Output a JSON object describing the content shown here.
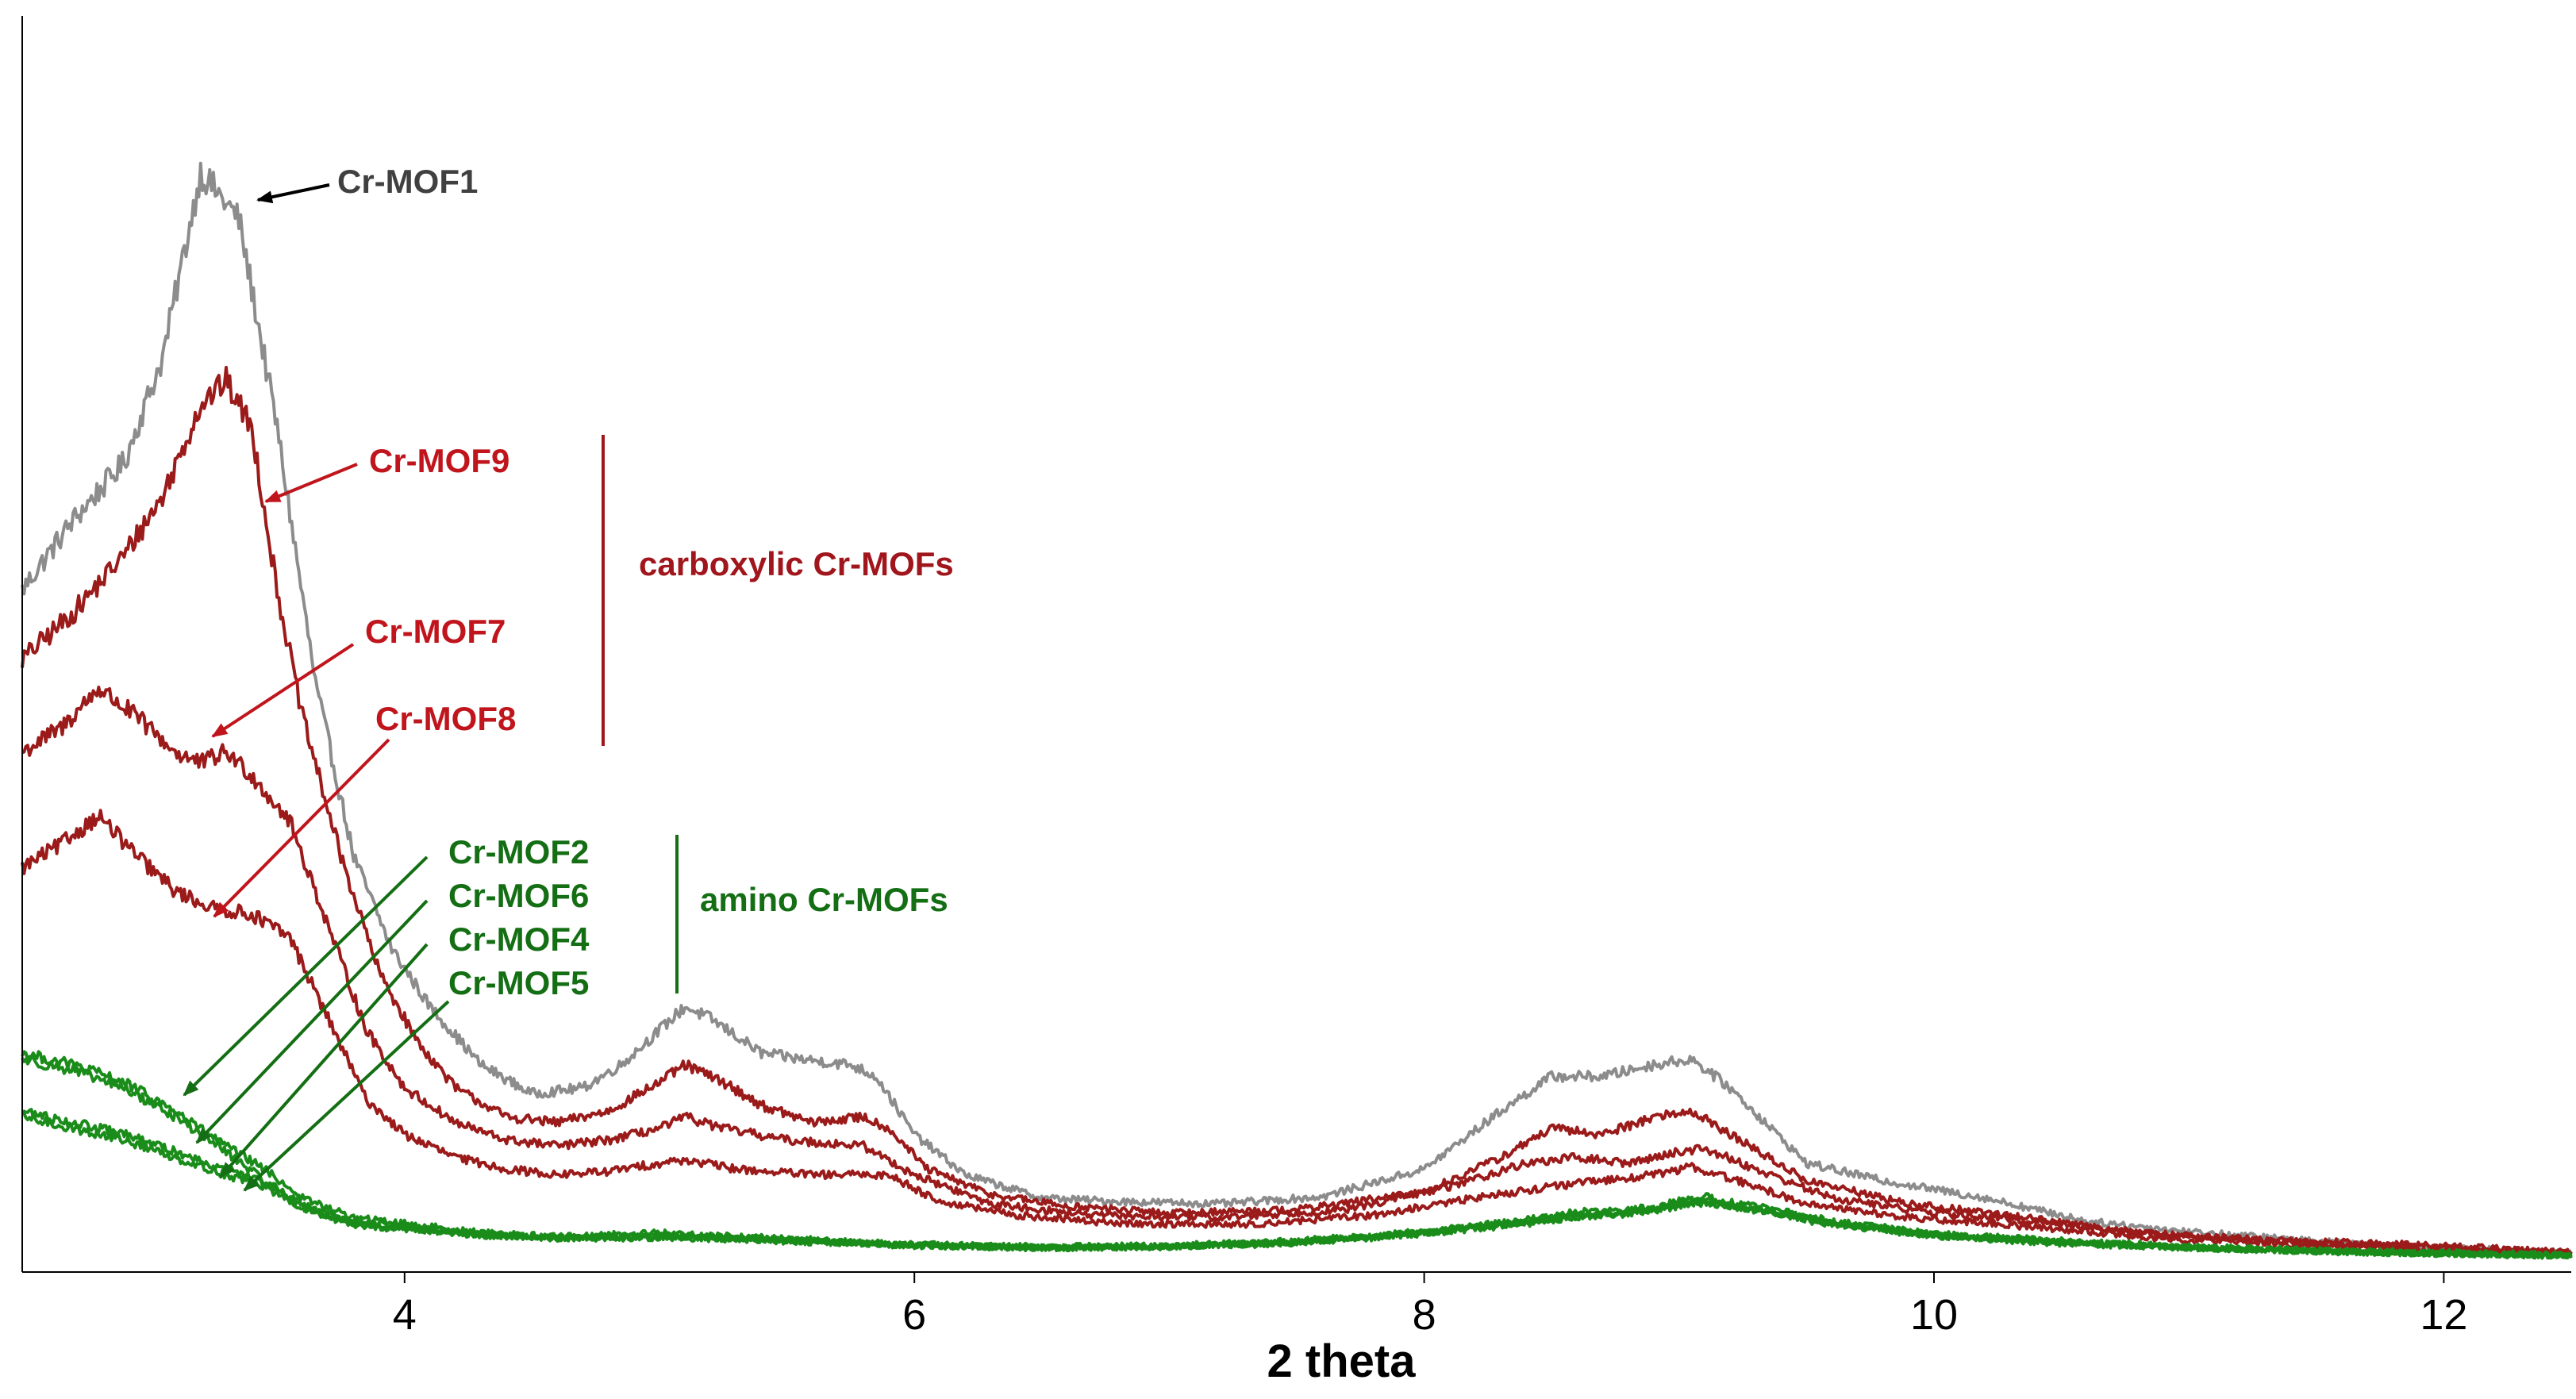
{
  "chart_data": {
    "type": "line",
    "title": "",
    "xlabel": "2 theta",
    "ylabel": "",
    "xlim": [
      2.5,
      12.5
    ],
    "ylim": [
      0,
      100
    ],
    "x_ticks": [
      4,
      6,
      8,
      10,
      12
    ],
    "x_tick_labels": [
      "4",
      "6",
      "8",
      "10",
      "12"
    ],
    "y_ticks_labeled": false,
    "grid": false,
    "legend": "none",
    "series_note": "relative intensity, arbitrary units",
    "series": [
      {
        "name": "Cr-MOF1",
        "color": "#8c8c8c",
        "points": [
          [
            2.5,
            58
          ],
          [
            2.7,
            64
          ],
          [
            2.9,
            69
          ],
          [
            3.05,
            78
          ],
          [
            3.2,
            94
          ],
          [
            3.35,
            90
          ],
          [
            3.5,
            72
          ],
          [
            3.65,
            50
          ],
          [
            3.8,
            35
          ],
          [
            3.95,
            27
          ],
          [
            4.1,
            22
          ],
          [
            4.3,
            17
          ],
          [
            4.5,
            14.5
          ],
          [
            4.7,
            15
          ],
          [
            4.85,
            17
          ],
          [
            5.0,
            20
          ],
          [
            5.1,
            22
          ],
          [
            5.2,
            21
          ],
          [
            5.4,
            18
          ],
          [
            5.55,
            17.5
          ],
          [
            5.75,
            17
          ],
          [
            5.85,
            16
          ],
          [
            6.0,
            11
          ],
          [
            6.2,
            7.5
          ],
          [
            6.5,
            5.5
          ],
          [
            6.8,
            5.2
          ],
          [
            7.2,
            5
          ],
          [
            7.6,
            5.6
          ],
          [
            8.0,
            8
          ],
          [
            8.3,
            13
          ],
          [
            8.5,
            16
          ],
          [
            8.7,
            16
          ],
          [
            8.9,
            17
          ],
          [
            9.05,
            17.5
          ],
          [
            9.2,
            15
          ],
          [
            9.5,
            8.5
          ],
          [
            9.8,
            7
          ],
          [
            10.2,
            5.5
          ],
          [
            10.6,
            3.5
          ],
          [
            11.0,
            2.6
          ],
          [
            11.5,
            1.8
          ],
          [
            12.0,
            1.2
          ],
          [
            12.5,
            0.8
          ]
        ]
      },
      {
        "name": "Cr-MOF9",
        "color": "#9b1a1a",
        "points": [
          [
            2.5,
            52
          ],
          [
            2.7,
            56
          ],
          [
            2.9,
            61
          ],
          [
            3.05,
            66
          ],
          [
            3.2,
            74
          ],
          [
            3.3,
            76
          ],
          [
            3.4,
            72
          ],
          [
            3.5,
            58
          ],
          [
            3.6,
            47
          ],
          [
            3.75,
            35
          ],
          [
            3.9,
            25
          ],
          [
            4.05,
            19
          ],
          [
            4.2,
            15
          ],
          [
            4.4,
            12.5
          ],
          [
            4.6,
            12
          ],
          [
            4.8,
            13
          ],
          [
            5.0,
            15.5
          ],
          [
            5.1,
            17
          ],
          [
            5.25,
            15.5
          ],
          [
            5.4,
            13.5
          ],
          [
            5.6,
            12
          ],
          [
            5.8,
            12.5
          ],
          [
            5.9,
            11.5
          ],
          [
            6.05,
            8
          ],
          [
            6.3,
            5.8
          ],
          [
            6.6,
            4.8
          ],
          [
            7.0,
            4.2
          ],
          [
            7.5,
            4.5
          ],
          [
            8.0,
            6
          ],
          [
            8.3,
            9
          ],
          [
            8.5,
            11.5
          ],
          [
            8.7,
            11
          ],
          [
            8.9,
            12.5
          ],
          [
            9.05,
            13
          ],
          [
            9.2,
            11
          ],
          [
            9.5,
            7
          ],
          [
            9.9,
            5
          ],
          [
            10.3,
            4
          ],
          [
            10.8,
            2.5
          ],
          [
            11.3,
            1.9
          ],
          [
            12.0,
            1.4
          ],
          [
            12.5,
            0.8
          ]
        ]
      },
      {
        "name": "Cr-MOF7",
        "color": "#9b1a1a",
        "points": [
          [
            2.5,
            44
          ],
          [
            2.65,
            46
          ],
          [
            2.8,
            49.5
          ],
          [
            2.95,
            47
          ],
          [
            3.1,
            44
          ],
          [
            3.2,
            43
          ],
          [
            3.3,
            44
          ],
          [
            3.4,
            42
          ],
          [
            3.55,
            38
          ],
          [
            3.7,
            29
          ],
          [
            3.85,
            20
          ],
          [
            4.0,
            15
          ],
          [
            4.2,
            12
          ],
          [
            4.4,
            10.5
          ],
          [
            4.6,
            10
          ],
          [
            4.8,
            10.5
          ],
          [
            5.0,
            11.5
          ],
          [
            5.1,
            12.5
          ],
          [
            5.25,
            11.5
          ],
          [
            5.5,
            10.5
          ],
          [
            5.8,
            10
          ],
          [
            6.0,
            7.5
          ],
          [
            6.3,
            5
          ],
          [
            6.7,
            4
          ],
          [
            7.2,
            3.8
          ],
          [
            7.7,
            4.5
          ],
          [
            8.1,
            6.5
          ],
          [
            8.4,
            8.5
          ],
          [
            8.6,
            9
          ],
          [
            8.8,
            8.5
          ],
          [
            9.0,
            9.5
          ],
          [
            9.1,
            9.8
          ],
          [
            9.3,
            8
          ],
          [
            9.6,
            5.5
          ],
          [
            10.0,
            4.2
          ],
          [
            10.4,
            3.5
          ],
          [
            10.9,
            2.3
          ],
          [
            11.5,
            1.6
          ],
          [
            12.0,
            1.2
          ],
          [
            12.5,
            0.8
          ]
        ]
      },
      {
        "name": "Cr-MOF8",
        "color": "#9b1a1a",
        "points": [
          [
            2.5,
            34
          ],
          [
            2.65,
            36
          ],
          [
            2.8,
            38.5
          ],
          [
            2.95,
            35
          ],
          [
            3.1,
            32
          ],
          [
            3.25,
            30.5
          ],
          [
            3.4,
            30
          ],
          [
            3.55,
            28
          ],
          [
            3.7,
            21
          ],
          [
            3.85,
            14
          ],
          [
            4.0,
            11
          ],
          [
            4.2,
            9
          ],
          [
            4.4,
            8
          ],
          [
            4.6,
            7.5
          ],
          [
            4.8,
            7.8
          ],
          [
            5.0,
            8.5
          ],
          [
            5.1,
            8.8
          ],
          [
            5.3,
            8
          ],
          [
            5.6,
            7.5
          ],
          [
            5.9,
            7.5
          ],
          [
            6.1,
            5.2
          ],
          [
            6.4,
            4
          ],
          [
            6.8,
            3.3
          ],
          [
            7.3,
            3.2
          ],
          [
            7.8,
            4
          ],
          [
            8.2,
            5.5
          ],
          [
            8.5,
            6.5
          ],
          [
            8.7,
            7
          ],
          [
            8.9,
            7.5
          ],
          [
            9.05,
            8.2
          ],
          [
            9.2,
            7.2
          ],
          [
            9.5,
            5
          ],
          [
            9.9,
            3.8
          ],
          [
            10.4,
            3
          ],
          [
            10.9,
            2
          ],
          [
            11.5,
            1.4
          ],
          [
            12.0,
            1
          ],
          [
            12.5,
            0.7
          ]
        ]
      },
      {
        "name": "Cr-MOF2",
        "color": "#1a8c1a",
        "points": [
          [
            2.5,
            18
          ],
          [
            2.7,
            17
          ],
          [
            2.9,
            15.5
          ],
          [
            3.1,
            13
          ],
          [
            3.3,
            10
          ],
          [
            3.45,
            8
          ],
          [
            3.6,
            5.5
          ],
          [
            3.8,
            3.8
          ],
          [
            4.0,
            3.3
          ],
          [
            4.3,
            2.5
          ],
          [
            4.6,
            2.2
          ],
          [
            5.0,
            2.5
          ],
          [
            5.2,
            2.3
          ],
          [
            5.6,
            1.9
          ],
          [
            6.0,
            1.5
          ],
          [
            6.5,
            1.3
          ],
          [
            7.0,
            1.4
          ],
          [
            7.5,
            1.8
          ],
          [
            8.0,
            2.6
          ],
          [
            8.4,
            3.6
          ],
          [
            8.6,
            4.3
          ],
          [
            8.8,
            4.4
          ],
          [
            9.0,
            5.2
          ],
          [
            9.1,
            5.6
          ],
          [
            9.3,
            4.8
          ],
          [
            9.6,
            3.5
          ],
          [
            10.0,
            2.4
          ],
          [
            10.5,
            1.8
          ],
          [
            11.0,
            1.3
          ],
          [
            11.5,
            1
          ],
          [
            12.0,
            0.8
          ],
          [
            12.5,
            0.6
          ]
        ]
      },
      {
        "name": "Cr-MOF6",
        "color": "#1a8c1a",
        "points": [
          [
            2.5,
            17.5
          ],
          [
            2.7,
            16.5
          ],
          [
            2.9,
            15
          ],
          [
            3.1,
            12.5
          ],
          [
            3.3,
            9.5
          ],
          [
            3.45,
            7
          ],
          [
            3.6,
            5
          ],
          [
            3.8,
            3.5
          ],
          [
            4.0,
            3
          ],
          [
            4.3,
            2.4
          ],
          [
            4.6,
            2
          ],
          [
            5.0,
            2.2
          ],
          [
            5.2,
            2.1
          ],
          [
            5.6,
            1.8
          ],
          [
            6.0,
            1.4
          ],
          [
            6.5,
            1.2
          ],
          [
            7.0,
            1.3
          ],
          [
            7.5,
            1.7
          ],
          [
            8.0,
            2.5
          ],
          [
            8.4,
            3.4
          ],
          [
            8.6,
            4
          ],
          [
            8.8,
            4.2
          ],
          [
            9.0,
            5
          ],
          [
            9.1,
            5.3
          ],
          [
            9.3,
            4.6
          ],
          [
            9.6,
            3.4
          ],
          [
            10.0,
            2.3
          ],
          [
            10.5,
            1.7
          ],
          [
            11.0,
            1.2
          ],
          [
            11.5,
            0.9
          ],
          [
            12.0,
            0.7
          ],
          [
            12.5,
            0.5
          ]
        ]
      },
      {
        "name": "Cr-MOF4",
        "color": "#1a8c1a",
        "points": [
          [
            2.5,
            12.5
          ],
          [
            2.7,
            11.5
          ],
          [
            2.9,
            10.5
          ],
          [
            3.1,
            9
          ],
          [
            3.3,
            7.5
          ],
          [
            3.45,
            6.5
          ],
          [
            3.6,
            4.5
          ],
          [
            3.8,
            3.2
          ],
          [
            4.0,
            2.8
          ],
          [
            4.3,
            2.3
          ],
          [
            4.6,
            2
          ],
          [
            5.0,
            2.1
          ],
          [
            5.2,
            2
          ],
          [
            5.6,
            1.7
          ],
          [
            6.0,
            1.4
          ],
          [
            6.5,
            1.2
          ],
          [
            7.0,
            1.3
          ],
          [
            7.5,
            1.6
          ],
          [
            8.0,
            2.4
          ],
          [
            8.4,
            3.3
          ],
          [
            8.6,
            3.9
          ],
          [
            8.8,
            4.1
          ],
          [
            9.0,
            4.8
          ],
          [
            9.1,
            5.1
          ],
          [
            9.3,
            4.4
          ],
          [
            9.6,
            3.2
          ],
          [
            10.0,
            2.2
          ],
          [
            10.5,
            1.6
          ],
          [
            11.0,
            1.2
          ],
          [
            11.5,
            0.9
          ],
          [
            12.0,
            0.7
          ],
          [
            12.5,
            0.5
          ]
        ]
      },
      {
        "name": "Cr-MOF5",
        "color": "#1a8c1a",
        "points": [
          [
            2.5,
            13
          ],
          [
            2.7,
            12
          ],
          [
            2.9,
            11
          ],
          [
            3.1,
            9.5
          ],
          [
            3.3,
            8
          ],
          [
            3.45,
            6.8
          ],
          [
            3.6,
            4.7
          ],
          [
            3.8,
            3.3
          ],
          [
            4.0,
            2.9
          ],
          [
            4.3,
            2.3
          ],
          [
            4.6,
            2
          ],
          [
            5.0,
            2.2
          ],
          [
            5.2,
            2.1
          ],
          [
            5.6,
            1.8
          ],
          [
            6.0,
            1.4
          ],
          [
            6.5,
            1.2
          ],
          [
            7.0,
            1.3
          ],
          [
            7.5,
            1.7
          ],
          [
            8.0,
            2.5
          ],
          [
            8.4,
            3.4
          ],
          [
            8.6,
            4
          ],
          [
            8.8,
            4.2
          ],
          [
            9.0,
            4.9
          ],
          [
            9.1,
            5.2
          ],
          [
            9.3,
            4.5
          ],
          [
            9.6,
            3.3
          ],
          [
            10.0,
            2.3
          ],
          [
            10.5,
            1.7
          ],
          [
            11.0,
            1.2
          ],
          [
            11.5,
            0.9
          ],
          [
            12.0,
            0.7
          ],
          [
            12.5,
            0.5
          ]
        ]
      }
    ],
    "annotations": [
      {
        "text": "Cr-MOF1",
        "color": "#404040"
      },
      {
        "text": "Cr-MOF9",
        "color": "#c0151c"
      },
      {
        "text": "Cr-MOF7",
        "color": "#c0151c"
      },
      {
        "text": "Cr-MOF8",
        "color": "#c0151c"
      },
      {
        "text": "carboxylic Cr-MOFs",
        "color": "#a0161c"
      },
      {
        "text": "Cr-MOF2",
        "color": "#146e14"
      },
      {
        "text": "Cr-MOF6",
        "color": "#146e14"
      },
      {
        "text": "Cr-MOF4",
        "color": "#146e14"
      },
      {
        "text": "Cr-MOF5",
        "color": "#146e14"
      },
      {
        "text": "amino Cr-MOFs",
        "color": "#146e14"
      }
    ]
  }
}
